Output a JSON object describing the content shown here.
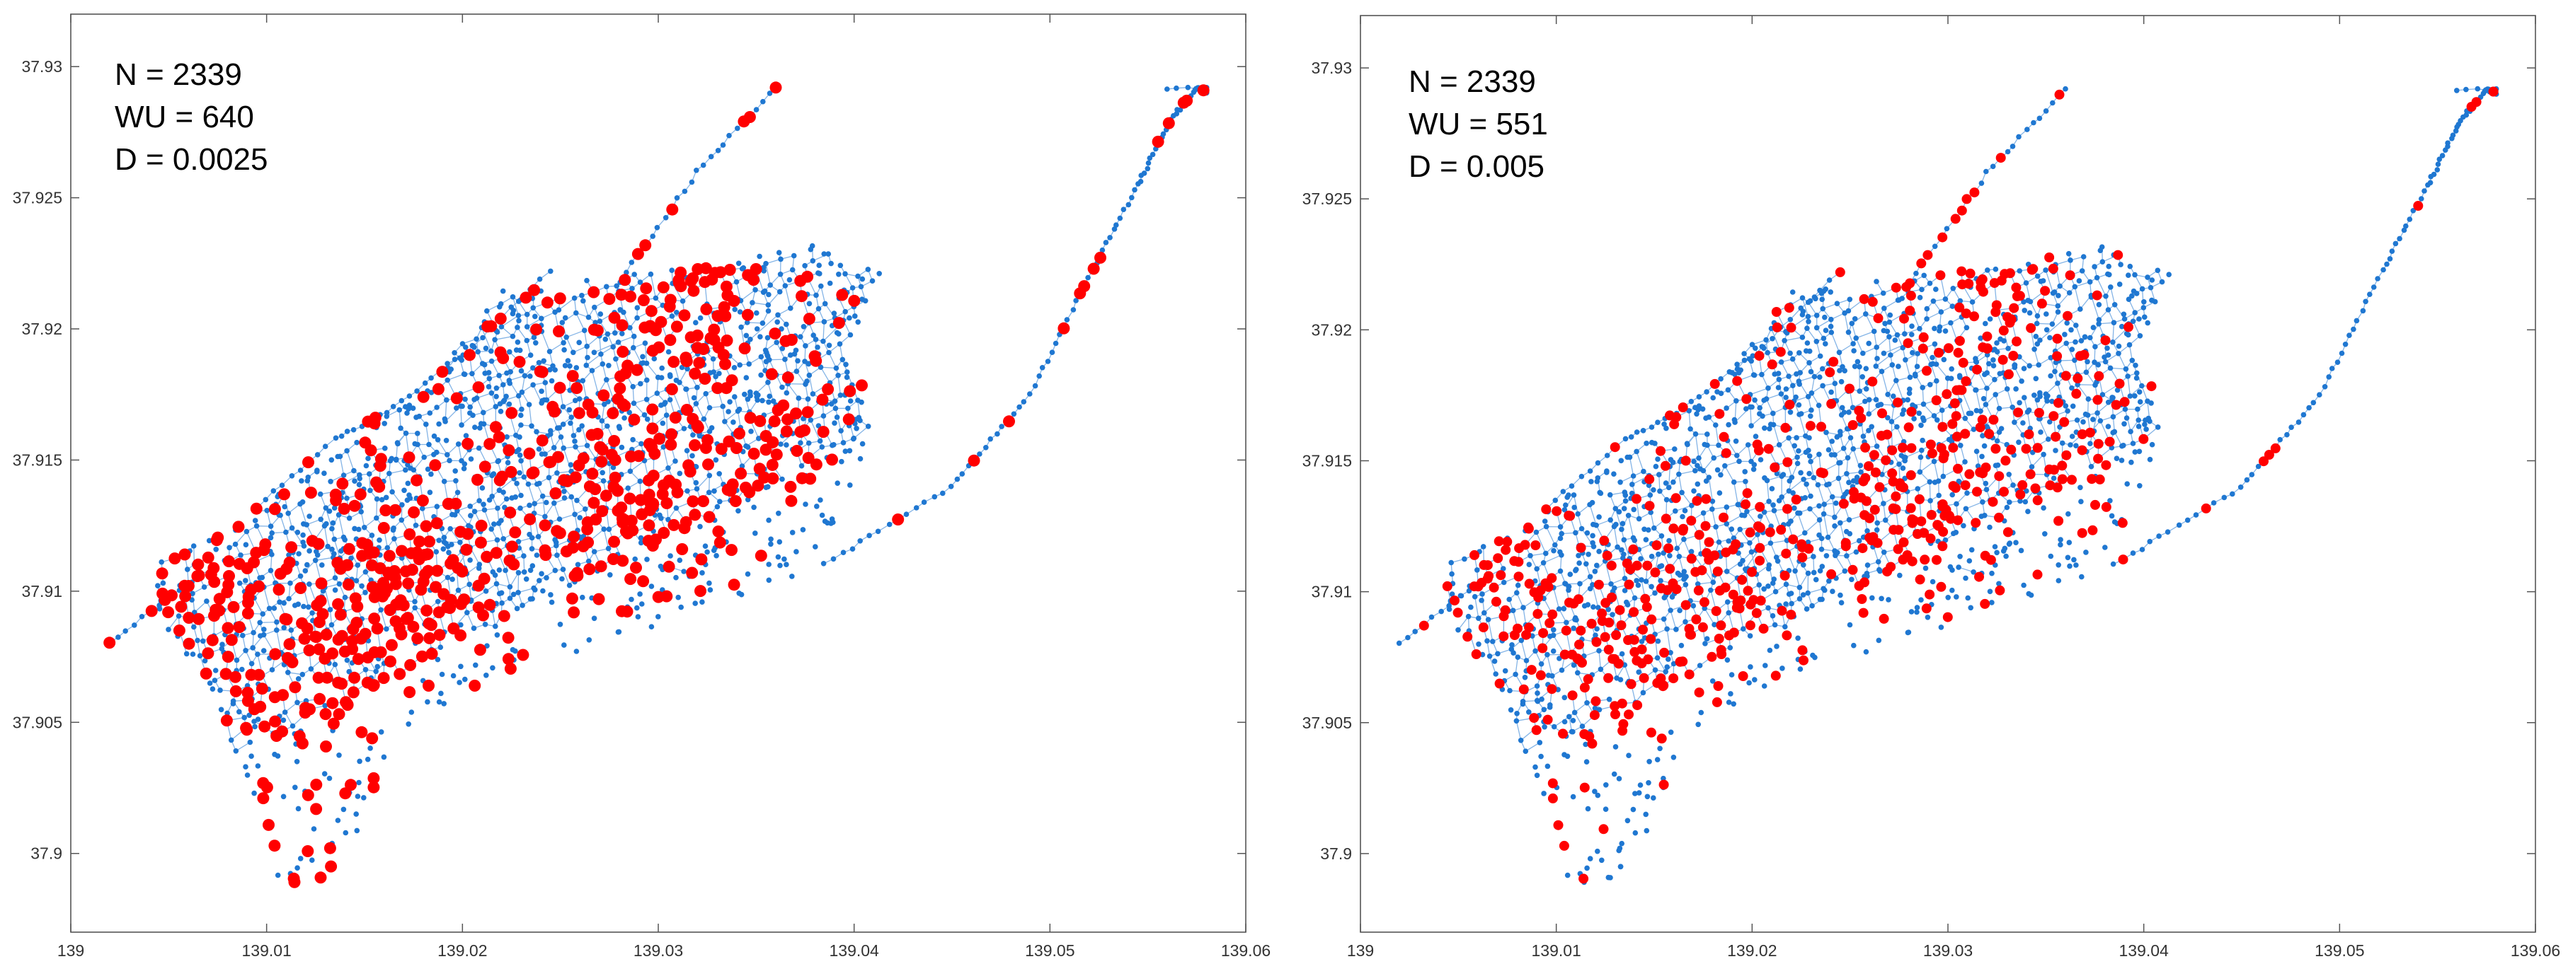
{
  "chart_data": [
    {
      "type": "scatter",
      "title": "",
      "xlabel": "",
      "ylabel": "",
      "xlim": [
        139.0,
        139.06
      ],
      "ylim": [
        37.897,
        37.932
      ],
      "x_ticks": [
        "139",
        "139.01",
        "139.02",
        "139.03",
        "139.04",
        "139.05",
        "139.06"
      ],
      "y_ticks": [
        "37.9",
        "37.905",
        "37.91",
        "37.915",
        "37.92",
        "37.925",
        "37.93"
      ],
      "grid": false,
      "annotations": [
        "N = 2339",
        "WU = 640",
        "D = 0.0025"
      ],
      "series": [
        {
          "name": "network nodes",
          "color": "#1f77d1",
          "count": 2339
        },
        {
          "name": "selected nodes",
          "color": "#ff0000",
          "count": 640
        }
      ],
      "points_sample": {
        "x": [
          139.002,
          139.036,
          139.057,
          139.058,
          139.009,
          139.012,
          139.037,
          139.04,
          139.025,
          139.033
        ],
        "y": [
          37.908,
          37.929,
          37.929,
          37.929,
          37.91,
          37.8975,
          37.915,
          37.922,
          37.918,
          37.912
        ]
      }
    },
    {
      "type": "scatter",
      "title": "",
      "xlabel": "",
      "ylabel": "",
      "xlim": [
        139.0,
        139.06
      ],
      "ylim": [
        37.897,
        37.932
      ],
      "x_ticks": [
        "139",
        "139.01",
        "139.02",
        "139.03",
        "139.04",
        "139.05",
        "139.06"
      ],
      "y_ticks": [
        "37.9",
        "37.905",
        "37.91",
        "37.915",
        "37.92",
        "37.925",
        "37.93"
      ],
      "grid": false,
      "annotations": [
        "N = 2339",
        "WU = 551",
        "D = 0.005"
      ],
      "series": [
        {
          "name": "network nodes",
          "color": "#1f77d1",
          "count": 2339
        },
        {
          "name": "selected nodes",
          "color": "#ff0000",
          "count": 551
        }
      ],
      "points_sample": {
        "x": [
          139.002,
          139.036,
          139.056,
          139.058,
          139.009,
          139.012,
          139.037,
          139.04,
          139.025,
          139.033
        ],
        "y": [
          37.908,
          37.929,
          37.929,
          37.929,
          37.91,
          37.8975,
          37.915,
          37.922,
          37.918,
          37.912
        ]
      }
    }
  ]
}
